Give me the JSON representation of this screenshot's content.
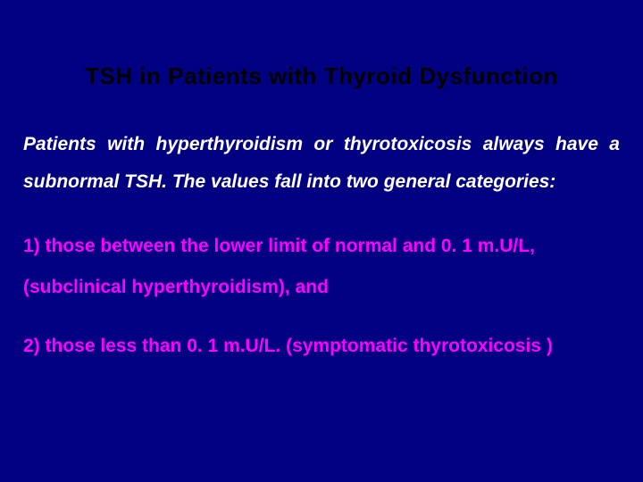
{
  "slide": {
    "background_color": "#000080",
    "title": {
      "text": "TSH in Patients with Thyroid Dysfunction",
      "color": "#000000",
      "fontsize": 26,
      "fontweight": 900,
      "align": "center"
    },
    "body": {
      "text": "Patients with hyperthyroidism or thyrotoxicosis always have a subnormal TSH. The values fall into two general categories:",
      "color": "#ffffff",
      "fontsize": 21,
      "fontweight": 700,
      "italic": true,
      "align": "justify"
    },
    "point1": {
      "text": "1) those between the lower limit of normal and 0. 1 m.U/L, (subclinical hyperthyroidism), and",
      "color": "#ff00ff",
      "fontsize": 21,
      "fontweight": 700
    },
    "point2": {
      "text": "2) those less than 0. 1 m.U/L. (symptomatic thyrotoxicosis )",
      "color": "#ff00ff",
      "fontsize": 21,
      "fontweight": 700
    }
  }
}
